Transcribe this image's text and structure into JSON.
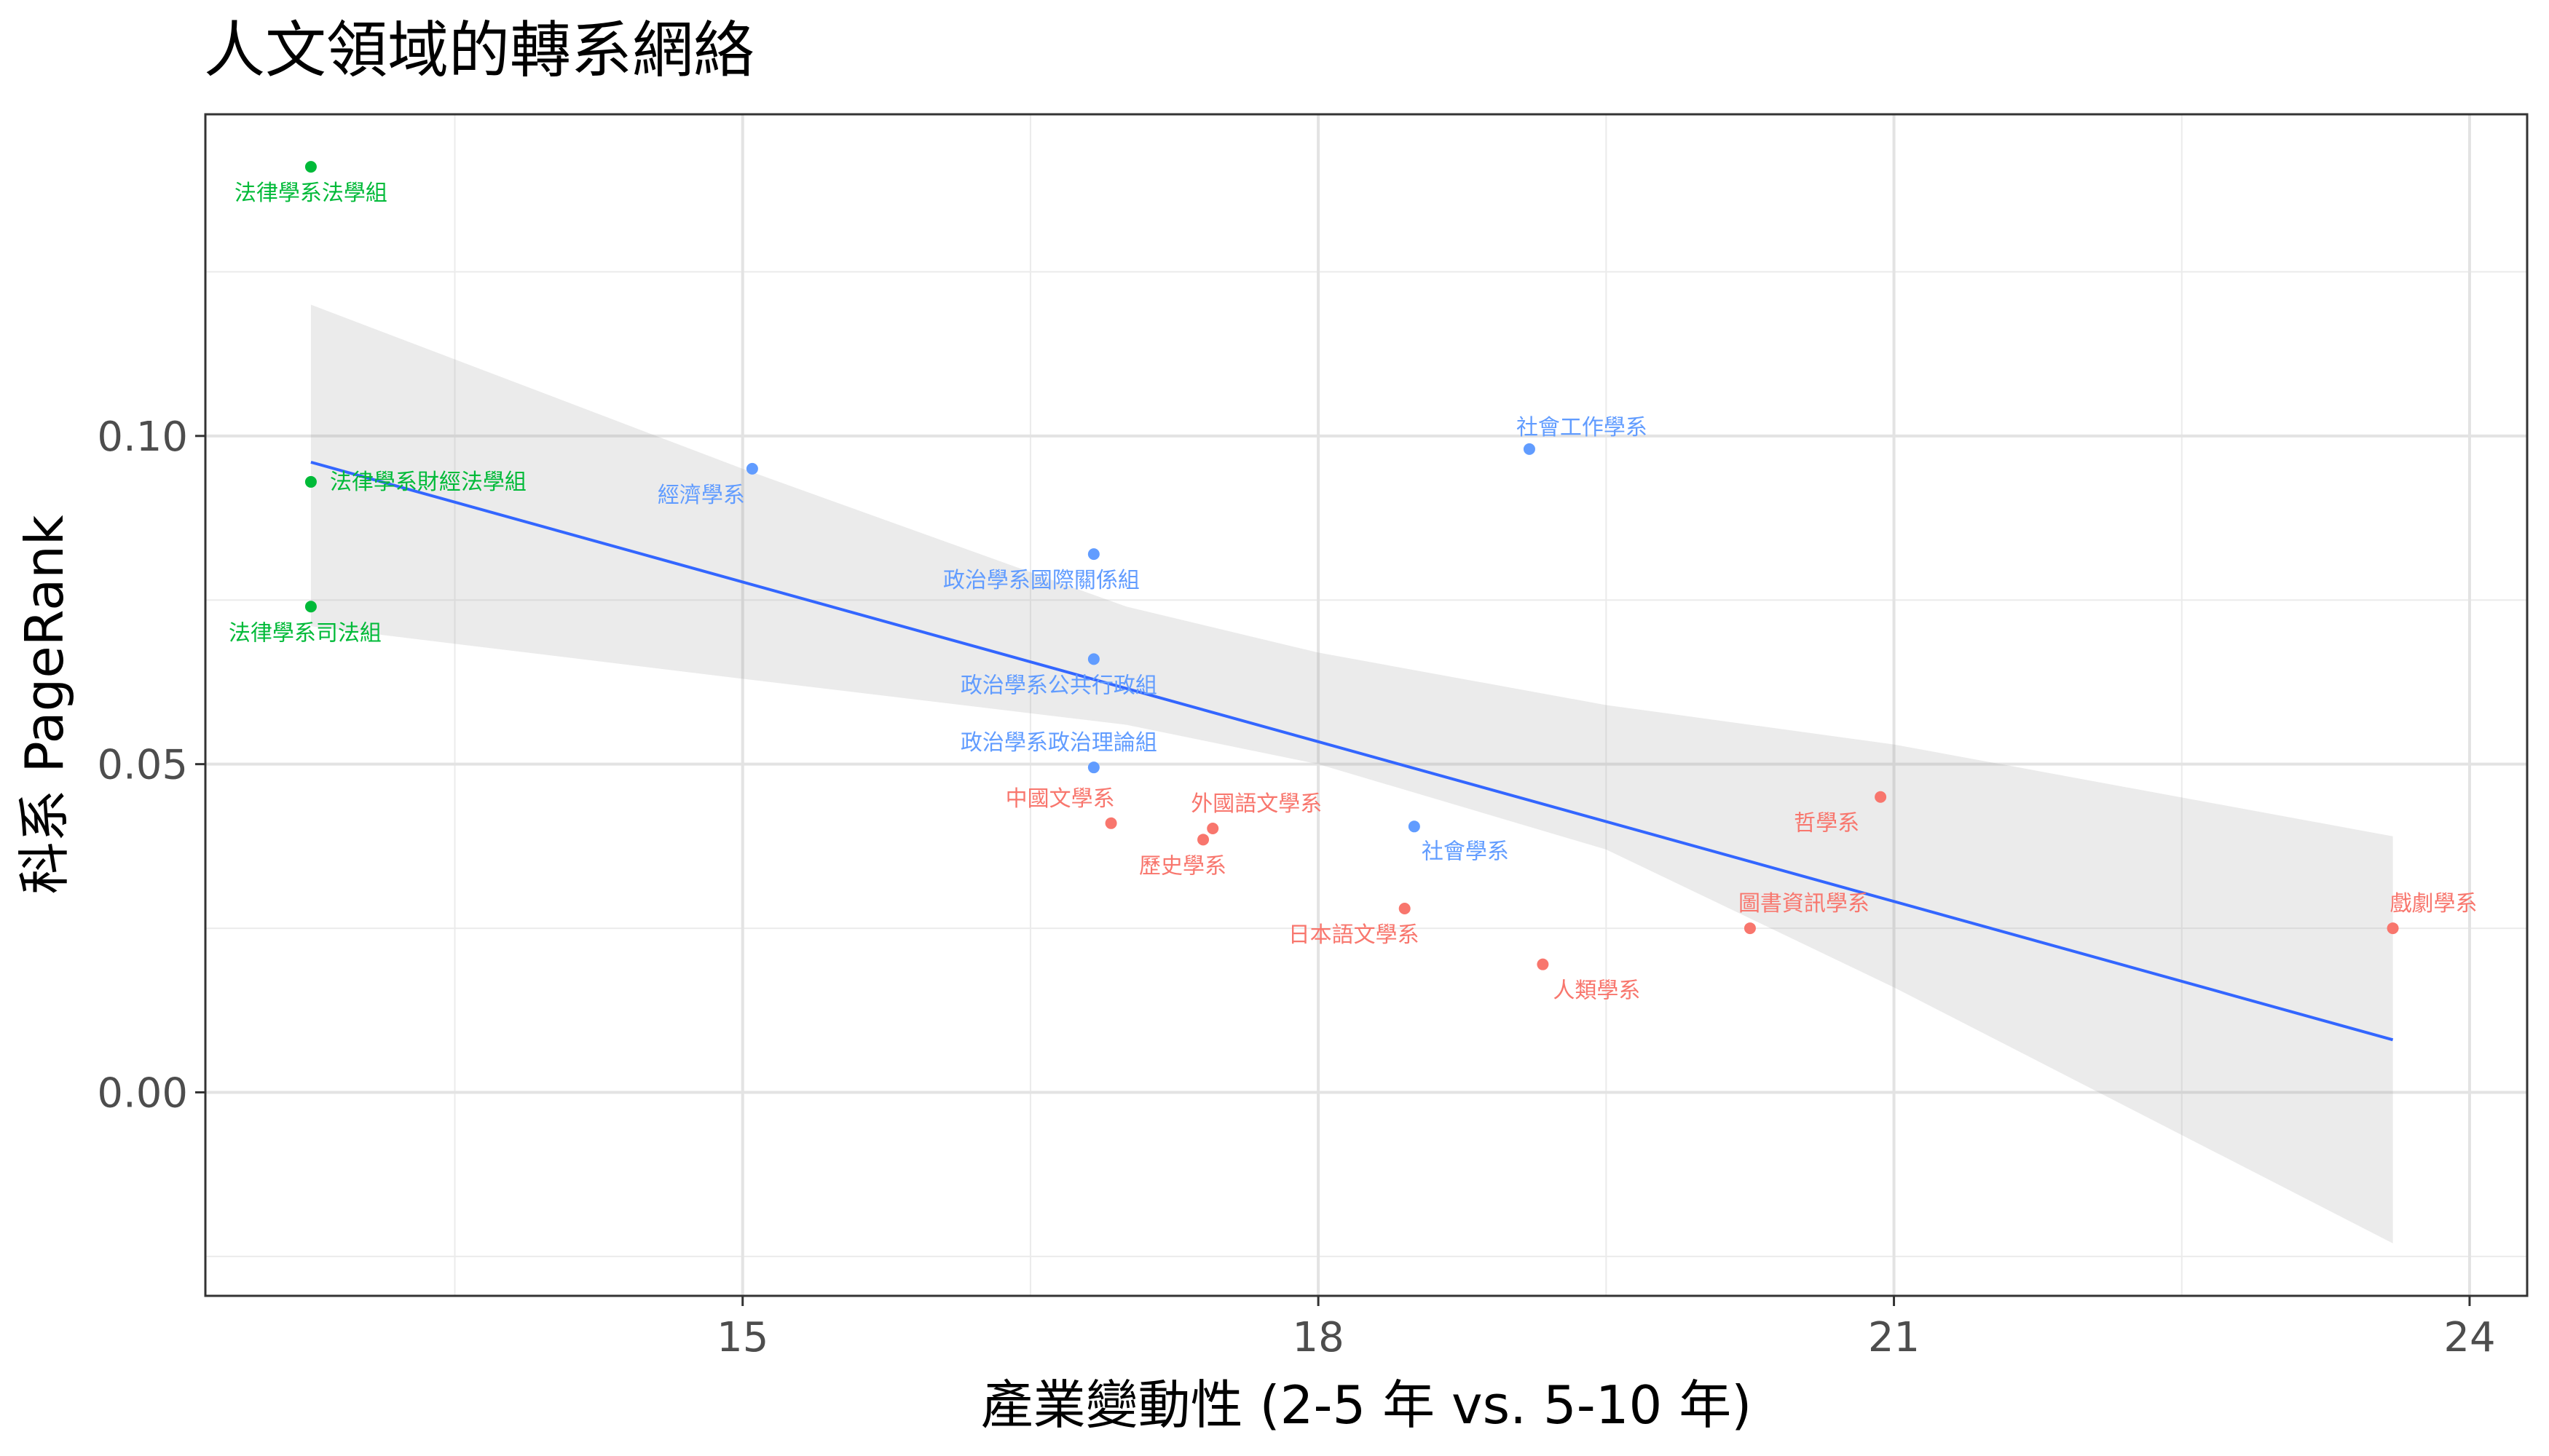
{
  "chart_data": {
    "type": "scatter",
    "title": "人文領域的轉系網絡",
    "xlabel": "產業變動性 (2-5 年 vs. 5-10 年)",
    "ylabel": "科系 PageRank",
    "xlim": [
      12.2,
      24.3
    ],
    "ylim": [
      -0.031,
      0.149
    ],
    "x_ticks": [
      15,
      18,
      21,
      24
    ],
    "x_tick_labels": [
      "15",
      "18",
      "21",
      "24"
    ],
    "y_ticks": [
      0.0,
      0.05,
      0.1
    ],
    "y_tick_labels": [
      "0.00",
      "0.05",
      "0.10"
    ],
    "grid": true,
    "legend": "none",
    "series": [
      {
        "color": "#00BA38",
        "points": [
          {
            "label": "法律學系法學組",
            "x": 12.75,
            "y": 0.141
          },
          {
            "label": "法律學系財經法學組",
            "x": 12.75,
            "y": 0.093
          },
          {
            "label": "法律學系司法組",
            "x": 12.75,
            "y": 0.074
          }
        ]
      },
      {
        "color": "#619CFF",
        "points": [
          {
            "label": "經濟學系",
            "x": 15.05,
            "y": 0.095
          },
          {
            "label": "社會工作學系",
            "x": 19.1,
            "y": 0.098
          },
          {
            "label": "政治學系國際關係組",
            "x": 16.83,
            "y": 0.082
          },
          {
            "label": "政治學系公共行政組",
            "x": 16.83,
            "y": 0.066
          },
          {
            "label": "政治學系政治理論組",
            "x": 16.83,
            "y": 0.0495
          },
          {
            "label": "社會學系",
            "x": 18.5,
            "y": 0.0405
          }
        ]
      },
      {
        "color": "#F8766D",
        "points": [
          {
            "label": "中國文學系",
            "x": 16.92,
            "y": 0.041
          },
          {
            "label": "外國語文學系",
            "x": 17.45,
            "y": 0.0402
          },
          {
            "label": "歷史學系",
            "x": 17.4,
            "y": 0.0385
          },
          {
            "label": "日本語文學系",
            "x": 18.45,
            "y": 0.028
          },
          {
            "label": "人類學系",
            "x": 19.17,
            "y": 0.0195
          },
          {
            "label": "哲學系",
            "x": 20.93,
            "y": 0.045
          },
          {
            "label": "圖書資訊學系",
            "x": 20.25,
            "y": 0.025
          },
          {
            "label": "戲劇學系",
            "x": 23.6,
            "y": 0.025
          }
        ]
      }
    ],
    "trend_line": {
      "color": "#3366FF",
      "x": [
        12.75,
        23.6
      ],
      "y": [
        0.096,
        0.008
      ]
    },
    "confidence_band": {
      "color": "#999999",
      "x": [
        12.75,
        15.0,
        17.0,
        18.0,
        19.5,
        21.0,
        23.6
      ],
      "upper": [
        0.12,
        0.095,
        0.074,
        0.067,
        0.059,
        0.053,
        0.039
      ],
      "lower": [
        0.071,
        0.063,
        0.056,
        0.05,
        0.037,
        0.016,
        -0.023
      ]
    }
  }
}
